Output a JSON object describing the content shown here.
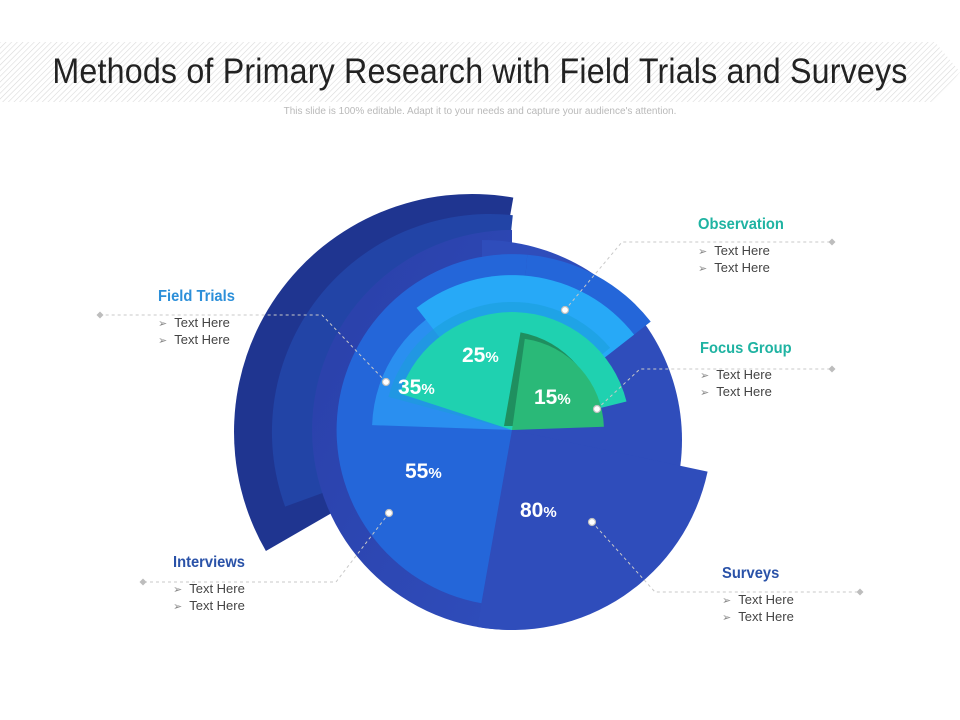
{
  "header": {
    "title": "Methods of Primary Research with Field Trials and Surveys",
    "subtitle": "This slide is 100% editable. Adapt it to your needs and capture your audience's attention."
  },
  "colors": {
    "surveys": "#2f4dbb",
    "interviews": "#2466d9",
    "field_trials": "#2a8ff0",
    "observation": "#27a9f7",
    "focus_group": "#1fd1b0",
    "inner_15": "#2ab978",
    "title_teal": "#1fb3a2",
    "title_blue": "#2c8fd9",
    "title_navy": "#2a52a8"
  },
  "chart_data": {
    "type": "pie",
    "title": "Methods of Primary Research with Field Trials and Surveys",
    "slices": [
      {
        "label": "Surveys",
        "value": 80,
        "display": "80",
        "unit": "%"
      },
      {
        "label": "Interviews",
        "value": 55,
        "display": "55",
        "unit": "%"
      },
      {
        "label": "Field Trials",
        "value": 35,
        "display": "35",
        "unit": "%"
      },
      {
        "label": "Observation",
        "value": 25,
        "display": "25",
        "unit": "%"
      },
      {
        "label": "Focus Group",
        "value": 15,
        "display": "15",
        "unit": "%"
      }
    ]
  },
  "labels": {
    "observation": {
      "title": "Observation",
      "bullets": [
        "Text Here",
        "Text Here"
      ]
    },
    "focus_group": {
      "title": "Focus Group",
      "bullets": [
        "Text Here",
        "Text Here"
      ]
    },
    "field_trials": {
      "title": "Field Trials",
      "bullets": [
        "Text Here",
        "Text Here"
      ]
    },
    "interviews": {
      "title": "Interviews",
      "bullets": [
        "Text Here",
        "Text Here"
      ]
    },
    "surveys": {
      "title": "Surveys",
      "bullets": [
        "Text Here",
        "Text Here"
      ]
    }
  }
}
